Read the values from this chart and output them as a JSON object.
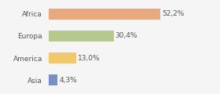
{
  "categories": [
    "Africa",
    "Europa",
    "America",
    "Asia"
  ],
  "values": [
    52.2,
    30.4,
    13.0,
    4.3
  ],
  "labels": [
    "52,2%",
    "30,4%",
    "13,0%",
    "4,3%"
  ],
  "bar_colors": [
    "#e8a97e",
    "#b5c98e",
    "#f0c96e",
    "#7b8fc7"
  ],
  "background_color": "#f5f5f5",
  "xlim": [
    0,
    78
  ],
  "label_fontsize": 6.5,
  "category_fontsize": 6.5,
  "bar_height": 0.5
}
